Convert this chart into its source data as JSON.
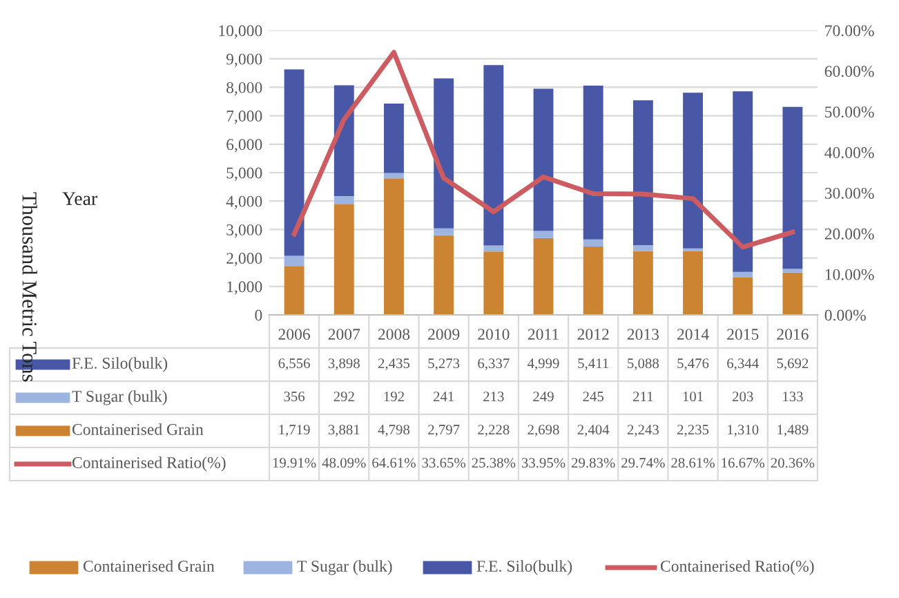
{
  "chart_data": {
    "type": "bar",
    "stacked": true,
    "annotations": [
      "Year",
      "Thousand Metric Tons"
    ],
    "categories": [
      "2006",
      "2007",
      "2008",
      "2009",
      "2010",
      "2011",
      "2012",
      "2013",
      "2014",
      "2015",
      "2016"
    ],
    "series": [
      {
        "name": "Containerised Grain",
        "color": "#cd8432",
        "values": [
          1719,
          3881,
          4798,
          2797,
          2228,
          2698,
          2404,
          2243,
          2235,
          1310,
          1489
        ],
        "value_labels": [
          "1,719",
          "3,881",
          "4,798",
          "2,797",
          "2,228",
          "2,698",
          "2,404",
          "2,243",
          "2,235",
          "1,310",
          "1,489"
        ]
      },
      {
        "name": "T Sugar (bulk)",
        "color": "#9db4e0",
        "values": [
          356,
          292,
          192,
          241,
          213,
          249,
          245,
          211,
          101,
          203,
          133
        ],
        "value_labels": [
          "356",
          "292",
          "192",
          "241",
          "213",
          "249",
          "245",
          "211",
          "101",
          "203",
          "133"
        ]
      },
      {
        "name": "F.E. Silo(bulk)",
        "color": "#4857a6",
        "values": [
          6556,
          3898,
          2435,
          5273,
          6337,
          4999,
          5411,
          5088,
          5476,
          6344,
          5692
        ],
        "value_labels": [
          "6,556",
          "3,898",
          "2,435",
          "5,273",
          "6,337",
          "4,999",
          "5,411",
          "5,088",
          "5,476",
          "6,344",
          "5,692"
        ]
      },
      {
        "name": "Containerised Ratio(%)",
        "type": "line",
        "axis": "y2",
        "color": "#cd5c62",
        "values": [
          19.91,
          48.09,
          64.61,
          33.65,
          25.38,
          33.95,
          29.83,
          29.74,
          28.61,
          16.67,
          20.36
        ],
        "value_labels": [
          "19.91%",
          "48.09%",
          "64.61%",
          "33.65%",
          "25.38%",
          "33.95%",
          "29.83%",
          "29.74%",
          "28.61%",
          "16.67%",
          "20.36%"
        ]
      }
    ],
    "ylim": [
      0,
      10000
    ],
    "yticks": [
      0,
      {
        "value": 1000,
        "label": "1,000"
      },
      {
        "value": 2000,
        "label": "2,000"
      },
      {
        "value": 3000,
        "label": "3,000"
      },
      {
        "value": 4000,
        "label": "4,000"
      },
      {
        "value": 5000,
        "label": "5,000"
      },
      {
        "value": 6000,
        "label": "6,000"
      },
      {
        "value": 7000,
        "label": "7,000"
      },
      {
        "value": 8000,
        "label": "8,000"
      },
      {
        "value": 9000,
        "label": "9,000"
      },
      {
        "value": 10000,
        "label": "10,000"
      }
    ],
    "y2lim": [
      0,
      70
    ],
    "y2ticks": [
      {
        "value": 0,
        "label": "0.00%"
      },
      {
        "value": 10,
        "label": "10.00%"
      },
      {
        "value": 20,
        "label": "20.00%"
      },
      {
        "value": 30,
        "label": "30.00%"
      },
      {
        "value": 40,
        "label": "40.00%"
      },
      {
        "value": 50,
        "label": "50.00%"
      },
      {
        "value": 60,
        "label": "60.00%"
      },
      {
        "value": 70,
        "label": "70.00%"
      }
    ],
    "grid": "y",
    "legend": "bottom",
    "line_style": "solid",
    "marker": "none"
  }
}
